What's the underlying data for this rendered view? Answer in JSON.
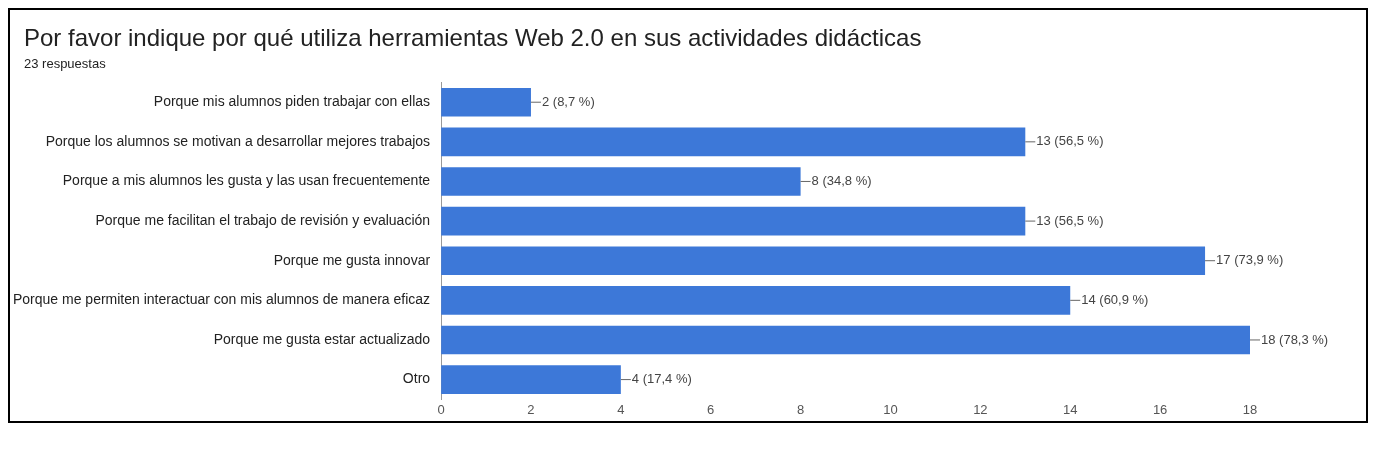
{
  "chart_data": {
    "type": "bar",
    "orientation": "horizontal",
    "title": "Por favor indique por qué utiliza herramientas Web 2.0 en sus actividades didácticas",
    "subtitle": "23 respuestas",
    "categories": [
      "Porque mis alumnos piden trabajar con ellas",
      "Porque los alumnos se motivan a desarrollar mejores trabajos",
      "Porque a mis alumnos les gusta y las usan frecuentemente",
      "Porque me facilitan el trabajo de revisión y evaluación",
      "Porque me gusta innovar",
      "Porque me permiten interactuar con mis alumnos de manera eficaz",
      "Porque me gusta estar actualizado",
      "Otro"
    ],
    "values": [
      2,
      13,
      8,
      13,
      17,
      14,
      18,
      4
    ],
    "value_labels": [
      "2 (8,7 %)",
      "13 (56,5 %)",
      "8 (34,8 %)",
      "13 (56,5 %)",
      "17 (73,9 %)",
      "14 (60,9 %)",
      "18 (78,3 %)",
      "4 (17,4 %)"
    ],
    "color": "#3d78d8",
    "xlim": [
      0,
      18
    ],
    "xticks": [
      0,
      2,
      4,
      6,
      8,
      10,
      12,
      14,
      16,
      18
    ],
    "grid": false,
    "legend": false
  }
}
